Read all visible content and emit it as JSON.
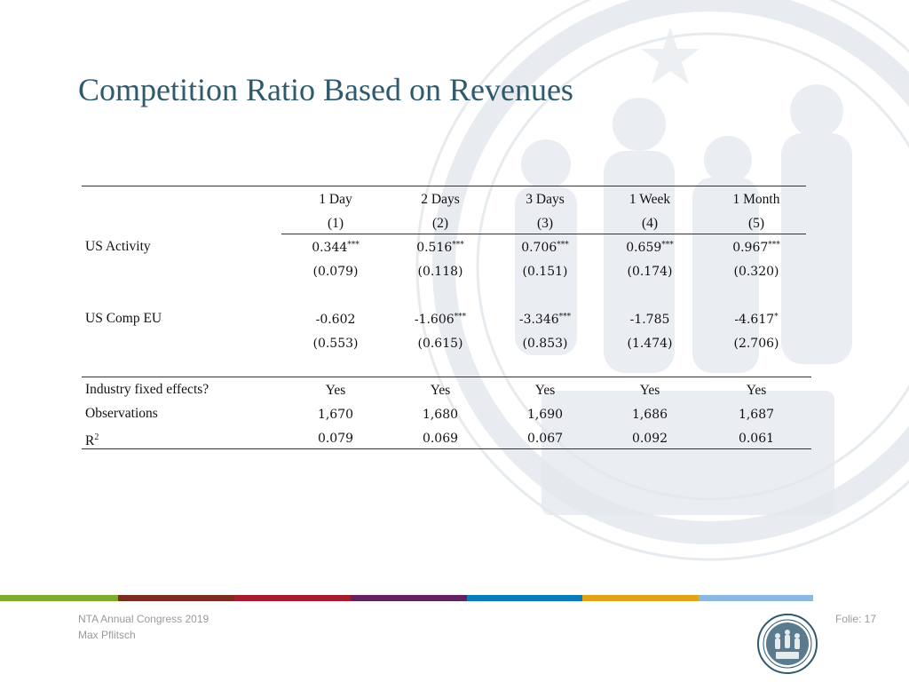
{
  "slide": {
    "title": "Competition Ratio Based on Revenues"
  },
  "table": {
    "columns": [
      {
        "label": "1 Day",
        "num": "(1)"
      },
      {
        "label": "2 Days",
        "num": "(2)"
      },
      {
        "label": "3 Days",
        "num": "(3)"
      },
      {
        "label": "1 Week",
        "num": "(4)"
      },
      {
        "label": "1 Month",
        "num": "(5)"
      }
    ],
    "rows": {
      "us_activity": {
        "label": "US Activity",
        "coef": [
          {
            "v": "0.344",
            "s": "***"
          },
          {
            "v": "0.516",
            "s": "***"
          },
          {
            "v": "0.706",
            "s": "***"
          },
          {
            "v": "0.659",
            "s": "***"
          },
          {
            "v": "0.967",
            "s": "***"
          }
        ],
        "se": [
          "(0.079)",
          "(0.118)",
          "(0.151)",
          "(0.174)",
          "(0.320)"
        ]
      },
      "us_comp_eu": {
        "label": "US Comp EU",
        "coef": [
          {
            "v": "-0.602",
            "s": ""
          },
          {
            "v": "-1.606",
            "s": "***"
          },
          {
            "v": "-3.346",
            "s": "***"
          },
          {
            "v": "-1.785",
            "s": ""
          },
          {
            "v": "-4.617",
            "s": "*"
          }
        ],
        "se": [
          "(0.553)",
          "(0.615)",
          "(0.853)",
          "(1.474)",
          "(2.706)"
        ]
      }
    },
    "stats": [
      {
        "label": "Industry fixed effects?",
        "values": [
          "Yes",
          "Yes",
          "Yes",
          "Yes",
          "Yes"
        ],
        "font": "serif"
      },
      {
        "label": "Observations",
        "values": [
          "1,670",
          "1,680",
          "1,690",
          "1,686",
          "1,687"
        ],
        "font": "num"
      },
      {
        "label": "R",
        "sup": "2",
        "values": [
          "0.079",
          "0.069",
          "0.067",
          "0.092",
          "0.061"
        ],
        "font": "num"
      }
    ]
  },
  "footer": {
    "event": "NTA Annual Congress 2019",
    "author": "Max Pflitsch",
    "folio": "Folie: 17"
  },
  "colors": {
    "title": "#2f5a6e",
    "bar": [
      "#7fab2e",
      "#7a2e22",
      "#a21d2e",
      "#62225e",
      "#0f7ab8",
      "#e0a418",
      "#8bb8de"
    ]
  }
}
